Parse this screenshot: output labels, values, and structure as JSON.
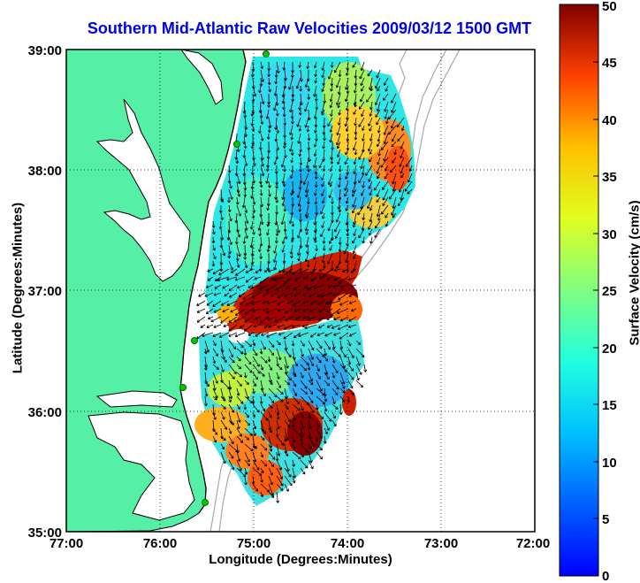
{
  "title": "Southern Mid-Atlantic Raw Velocities 2009/03/12 1500 GMT",
  "x_axis": {
    "label": "Longitude (Degrees:Minutes)",
    "ticks": [
      "77:00",
      "76:00",
      "75:00",
      "74:00",
      "73:00",
      "72:00"
    ],
    "range_deg_west": [
      77,
      72
    ]
  },
  "y_axis": {
    "label": "Latitude (Degrees:Minutes)",
    "ticks": [
      "39:00",
      "38:00",
      "37:00",
      "36:00",
      "35:00"
    ],
    "range_deg_north": [
      35,
      39
    ]
  },
  "colorbar": {
    "label": "Surface Velocity (cm/s)",
    "ticks": [
      "50",
      "45",
      "40",
      "35",
      "30",
      "25",
      "20",
      "15",
      "10",
      "5",
      "0"
    ],
    "range": [
      0,
      50
    ],
    "colormap": "jet"
  },
  "grid": "dotted",
  "colors": {
    "land": "#55f0a6",
    "coastline": "#000000",
    "isobath": "#a8a8a8",
    "title": "#0000ee",
    "station": "#00cc00"
  },
  "stations_shown": 5
}
